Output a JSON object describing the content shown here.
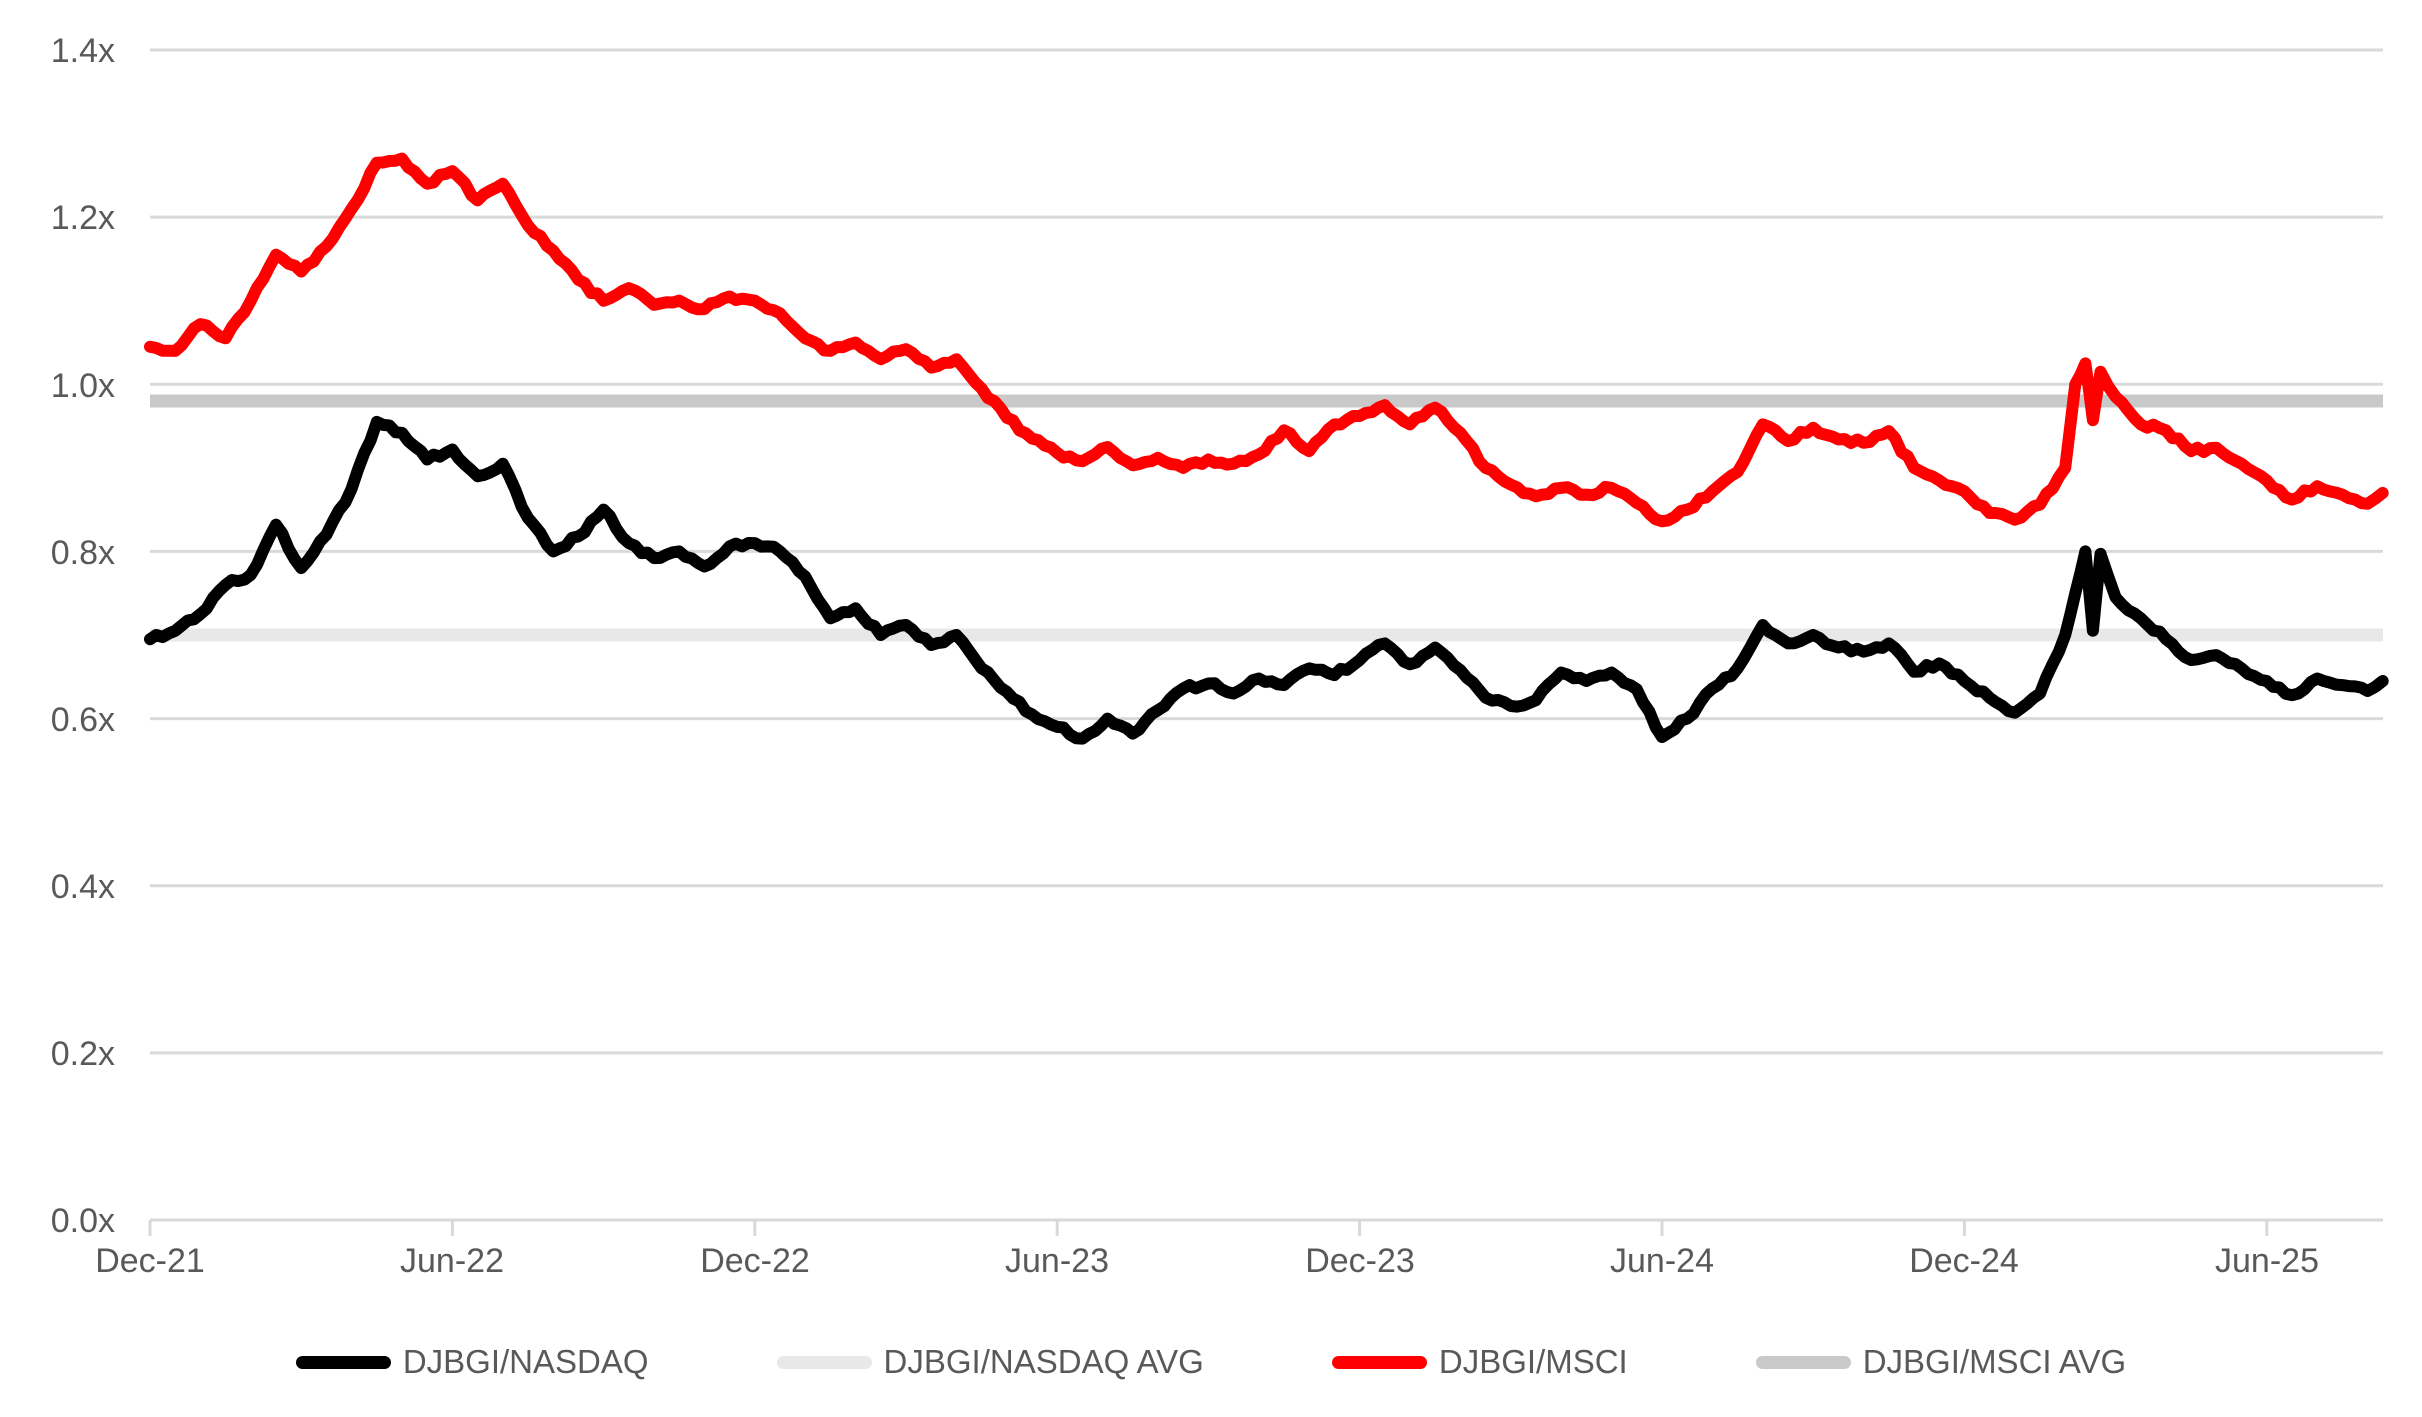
{
  "chart_data": {
    "type": "line",
    "title": "",
    "xlabel": "",
    "ylabel": "",
    "ylim": [
      0.0,
      1.4
    ],
    "grid": true,
    "legend_position": "bottom",
    "y_ticks": [
      0.0,
      0.2,
      0.4,
      0.6,
      0.8,
      1.0,
      1.2,
      1.4
    ],
    "y_tick_labels": [
      "0.0x",
      "0.2x",
      "0.4x",
      "0.6x",
      "0.8x",
      "1.0x",
      "1.2x",
      "1.4x"
    ],
    "x_tick_labels": [
      "Dec-21",
      "Jun-22",
      "Dec-22",
      "Jun-23",
      "Dec-23",
      "Jun-24",
      "Dec-24",
      "Jun-25"
    ],
    "x_tick_months": [
      0,
      6,
      12,
      18,
      24,
      30,
      36,
      42
    ],
    "x_months": [
      0,
      0.5,
      1,
      1.5,
      2,
      2.5,
      3,
      3.5,
      4,
      4.5,
      5,
      5.5,
      6,
      6.5,
      7,
      7.5,
      8,
      8.5,
      9,
      9.5,
      10,
      10.5,
      11,
      11.5,
      12,
      12.5,
      13,
      13.5,
      14,
      14.5,
      15,
      15.5,
      16,
      16.5,
      17,
      17.5,
      18,
      18.5,
      19,
      19.5,
      20,
      20.5,
      21,
      21.5,
      22,
      22.5,
      23,
      23.5,
      24,
      24.5,
      25,
      25.5,
      26,
      26.5,
      27,
      27.5,
      28,
      28.5,
      29,
      29.5,
      30,
      30.5,
      31,
      31.5,
      32,
      32.5,
      33,
      33.5,
      34,
      34.5,
      35,
      35.5,
      36,
      36.5,
      37,
      37.5,
      38,
      38.2,
      38.4,
      38.55,
      38.7,
      39,
      39.5,
      40,
      40.5,
      41,
      41.5,
      42,
      42.5,
      43,
      43.5,
      44,
      44.3
    ],
    "series": [
      {
        "name": "DJBGI/NASDAQ",
        "kind": "line",
        "color": "#000000",
        "values": [
          0.695,
          0.705,
          0.725,
          0.76,
          0.772,
          0.832,
          0.78,
          0.82,
          0.875,
          0.955,
          0.942,
          0.91,
          0.922,
          0.89,
          0.905,
          0.84,
          0.8,
          0.818,
          0.85,
          0.81,
          0.792,
          0.8,
          0.782,
          0.806,
          0.81,
          0.8,
          0.77,
          0.72,
          0.732,
          0.7,
          0.712,
          0.688,
          0.7,
          0.66,
          0.632,
          0.605,
          0.59,
          0.576,
          0.6,
          0.582,
          0.61,
          0.636,
          0.642,
          0.63,
          0.648,
          0.64,
          0.66,
          0.652,
          0.67,
          0.69,
          0.665,
          0.685,
          0.658,
          0.625,
          0.615,
          0.622,
          0.655,
          0.645,
          0.655,
          0.635,
          0.578,
          0.6,
          0.636,
          0.66,
          0.712,
          0.69,
          0.7,
          0.685,
          0.68,
          0.69,
          0.656,
          0.666,
          0.645,
          0.625,
          0.607,
          0.63,
          0.7,
          0.75,
          0.8,
          0.705,
          0.797,
          0.745,
          0.72,
          0.695,
          0.67,
          0.676,
          0.66,
          0.645,
          0.628,
          0.648,
          0.64,
          0.633,
          0.645
        ]
      },
      {
        "name": "DJBGI/NASDAQ AVG",
        "kind": "hline",
        "color": "#E8E8E8",
        "value": 0.7
      },
      {
        "name": "DJBGI/MSCI",
        "kind": "line",
        "color": "#FF0000",
        "values": [
          1.045,
          1.04,
          1.072,
          1.055,
          1.1,
          1.155,
          1.135,
          1.165,
          1.21,
          1.265,
          1.27,
          1.24,
          1.255,
          1.22,
          1.24,
          1.19,
          1.16,
          1.125,
          1.1,
          1.115,
          1.095,
          1.1,
          1.09,
          1.105,
          1.1,
          1.085,
          1.055,
          1.04,
          1.05,
          1.03,
          1.042,
          1.02,
          1.03,
          0.995,
          0.96,
          0.935,
          0.918,
          0.908,
          0.925,
          0.903,
          0.912,
          0.9,
          0.91,
          0.905,
          0.916,
          0.945,
          0.92,
          0.952,
          0.962,
          0.975,
          0.952,
          0.972,
          0.942,
          0.9,
          0.88,
          0.866,
          0.876,
          0.868,
          0.876,
          0.858,
          0.836,
          0.85,
          0.872,
          0.895,
          0.952,
          0.932,
          0.948,
          0.934,
          0.93,
          0.944,
          0.9,
          0.885,
          0.872,
          0.846,
          0.838,
          0.856,
          0.9,
          1.0,
          1.025,
          0.957,
          1.015,
          0.985,
          0.952,
          0.945,
          0.92,
          0.924,
          0.905,
          0.885,
          0.862,
          0.878,
          0.868,
          0.857,
          0.87
        ]
      },
      {
        "name": "DJBGI/MSCI AVG",
        "kind": "hline",
        "color": "#C9C9C9",
        "value": 0.98
      }
    ],
    "colors": {
      "gridline": "#D9D9D9",
      "tick_text": "#595959"
    }
  }
}
